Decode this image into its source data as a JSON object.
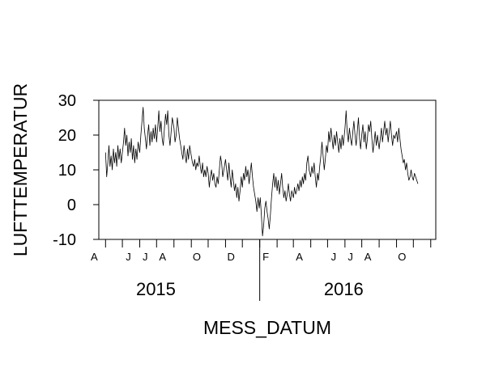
{
  "chart_data": {
    "type": "line",
    "xlabel": "MESS_DATUM",
    "ylabel": "LUFTTEMPERATUR",
    "ylim": [
      -10,
      30
    ],
    "yticks": [
      -10,
      0,
      10,
      20,
      30
    ],
    "xlim": [
      "2015-03-20",
      "2016-11-10"
    ],
    "month_ticks": [
      {
        "date": "2015-04-01",
        "label": "A"
      },
      {
        "date": "2015-05-01",
        "label": ""
      },
      {
        "date": "2015-06-01",
        "label": "J"
      },
      {
        "date": "2015-07-01",
        "label": "J"
      },
      {
        "date": "2015-08-01",
        "label": "A"
      },
      {
        "date": "2015-09-01",
        "label": ""
      },
      {
        "date": "2015-10-01",
        "label": "O"
      },
      {
        "date": "2015-11-01",
        "label": ""
      },
      {
        "date": "2015-12-01",
        "label": "D"
      },
      {
        "date": "2016-01-01",
        "label": ""
      },
      {
        "date": "2016-02-01",
        "label": "F"
      },
      {
        "date": "2016-03-01",
        "label": ""
      },
      {
        "date": "2016-04-01",
        "label": "A"
      },
      {
        "date": "2016-05-01",
        "label": ""
      },
      {
        "date": "2016-06-01",
        "label": "J"
      },
      {
        "date": "2016-07-01",
        "label": "J"
      },
      {
        "date": "2016-08-01",
        "label": "A"
      },
      {
        "date": "2016-09-01",
        "label": ""
      },
      {
        "date": "2016-10-01",
        "label": "O"
      },
      {
        "date": "2016-11-01",
        "label": ""
      }
    ],
    "year_labels": [
      {
        "label": "2015",
        "date": "2015-08-15"
      },
      {
        "label": "2016",
        "date": "2016-07-15"
      }
    ],
    "year_divider": "2016-01-01",
    "series": [
      {
        "points": [
          [
            "2015-04-01",
            15
          ],
          [
            "2015-04-03",
            8
          ],
          [
            "2015-04-05",
            12
          ],
          [
            "2015-04-07",
            17
          ],
          [
            "2015-04-09",
            11
          ],
          [
            "2015-04-11",
            14
          ],
          [
            "2015-04-13",
            10
          ],
          [
            "2015-04-15",
            16
          ],
          [
            "2015-04-17",
            12
          ],
          [
            "2015-04-19",
            15
          ],
          [
            "2015-04-21",
            11
          ],
          [
            "2015-04-23",
            17
          ],
          [
            "2015-04-25",
            13
          ],
          [
            "2015-04-27",
            16
          ],
          [
            "2015-04-29",
            12
          ],
          [
            "2015-05-01",
            15
          ],
          [
            "2015-05-03",
            18
          ],
          [
            "2015-05-05",
            22
          ],
          [
            "2015-05-07",
            17
          ],
          [
            "2015-05-09",
            20
          ],
          [
            "2015-05-11",
            14
          ],
          [
            "2015-05-13",
            18
          ],
          [
            "2015-05-15",
            15
          ],
          [
            "2015-05-17",
            19
          ],
          [
            "2015-05-19",
            13
          ],
          [
            "2015-05-21",
            17
          ],
          [
            "2015-05-23",
            12
          ],
          [
            "2015-05-25",
            16
          ],
          [
            "2015-05-27",
            13
          ],
          [
            "2015-05-29",
            18
          ],
          [
            "2015-06-01",
            15
          ],
          [
            "2015-06-03",
            20
          ],
          [
            "2015-06-05",
            24
          ],
          [
            "2015-06-07",
            28
          ],
          [
            "2015-06-09",
            22
          ],
          [
            "2015-06-11",
            19
          ],
          [
            "2015-06-13",
            16
          ],
          [
            "2015-06-15",
            20
          ],
          [
            "2015-06-17",
            23
          ],
          [
            "2015-06-19",
            17
          ],
          [
            "2015-06-21",
            21
          ],
          [
            "2015-06-23",
            18
          ],
          [
            "2015-06-25",
            22
          ],
          [
            "2015-06-27",
            19
          ],
          [
            "2015-06-29",
            23
          ],
          [
            "2015-07-01",
            18
          ],
          [
            "2015-07-03",
            22
          ],
          [
            "2015-07-05",
            27
          ],
          [
            "2015-07-07",
            21
          ],
          [
            "2015-07-09",
            24
          ],
          [
            "2015-07-11",
            19
          ],
          [
            "2015-07-13",
            17
          ],
          [
            "2015-07-15",
            22
          ],
          [
            "2015-07-17",
            26
          ],
          [
            "2015-07-19",
            23
          ],
          [
            "2015-07-21",
            27
          ],
          [
            "2015-07-23",
            20
          ],
          [
            "2015-07-25",
            17
          ],
          [
            "2015-07-27",
            21
          ],
          [
            "2015-07-29",
            25
          ],
          [
            "2015-08-01",
            22
          ],
          [
            "2015-08-03",
            18
          ],
          [
            "2015-08-05",
            20
          ],
          [
            "2015-08-07",
            25
          ],
          [
            "2015-08-09",
            22
          ],
          [
            "2015-08-11",
            19
          ],
          [
            "2015-08-13",
            17
          ],
          [
            "2015-08-15",
            15
          ],
          [
            "2015-08-17",
            13
          ],
          [
            "2015-08-19",
            17
          ],
          [
            "2015-08-21",
            14
          ],
          [
            "2015-08-23",
            12
          ],
          [
            "2015-08-25",
            16
          ],
          [
            "2015-08-27",
            13
          ],
          [
            "2015-08-29",
            17
          ],
          [
            "2015-09-01",
            14
          ],
          [
            "2015-09-03",
            12
          ],
          [
            "2015-09-05",
            11
          ],
          [
            "2015-09-07",
            13
          ],
          [
            "2015-09-09",
            10
          ],
          [
            "2015-09-11",
            12
          ],
          [
            "2015-09-13",
            11
          ],
          [
            "2015-09-15",
            14
          ],
          [
            "2015-09-17",
            11
          ],
          [
            "2015-09-19",
            9
          ],
          [
            "2015-09-21",
            12
          ],
          [
            "2015-09-23",
            8
          ],
          [
            "2015-09-25",
            10
          ],
          [
            "2015-09-27",
            8
          ],
          [
            "2015-09-29",
            11
          ],
          [
            "2015-10-01",
            9
          ],
          [
            "2015-10-03",
            5
          ],
          [
            "2015-10-05",
            8
          ],
          [
            "2015-10-07",
            10
          ],
          [
            "2015-10-09",
            7
          ],
          [
            "2015-10-11",
            9
          ],
          [
            "2015-10-13",
            6
          ],
          [
            "2015-10-15",
            5
          ],
          [
            "2015-10-17",
            8
          ],
          [
            "2015-10-19",
            6
          ],
          [
            "2015-10-21",
            10
          ],
          [
            "2015-10-23",
            14
          ],
          [
            "2015-10-25",
            12
          ],
          [
            "2015-10-27",
            8
          ],
          [
            "2015-10-29",
            10
          ],
          [
            "2015-11-01",
            13
          ],
          [
            "2015-11-03",
            10
          ],
          [
            "2015-11-05",
            7
          ],
          [
            "2015-11-07",
            12
          ],
          [
            "2015-11-09",
            8
          ],
          [
            "2015-11-11",
            5
          ],
          [
            "2015-11-13",
            10
          ],
          [
            "2015-11-15",
            7
          ],
          [
            "2015-11-17",
            4
          ],
          [
            "2015-11-19",
            6
          ],
          [
            "2015-11-21",
            2
          ],
          [
            "2015-11-23",
            5
          ],
          [
            "2015-11-25",
            1
          ],
          [
            "2015-11-27",
            4
          ],
          [
            "2015-11-29",
            8
          ],
          [
            "2015-12-01",
            5
          ],
          [
            "2015-12-03",
            9
          ],
          [
            "2015-12-05",
            7
          ],
          [
            "2015-12-07",
            11
          ],
          [
            "2015-12-09",
            8
          ],
          [
            "2015-12-11",
            10
          ],
          [
            "2015-12-13",
            6
          ],
          [
            "2015-12-15",
            9
          ],
          [
            "2015-12-17",
            12
          ],
          [
            "2015-12-19",
            8
          ],
          [
            "2015-12-21",
            5
          ],
          [
            "2015-12-23",
            3
          ],
          [
            "2015-12-25",
            1
          ],
          [
            "2015-12-27",
            -2
          ],
          [
            "2015-12-29",
            2
          ],
          [
            "2015-12-31",
            -1
          ],
          [
            "2016-01-02",
            2
          ],
          [
            "2016-01-04",
            -3
          ],
          [
            "2016-01-06",
            -9
          ],
          [
            "2016-01-08",
            -6
          ],
          [
            "2016-01-10",
            -1
          ],
          [
            "2016-01-12",
            1
          ],
          [
            "2016-01-14",
            -2
          ],
          [
            "2016-01-16",
            -4
          ],
          [
            "2016-01-18",
            -7
          ],
          [
            "2016-01-20",
            -3
          ],
          [
            "2016-01-22",
            2
          ],
          [
            "2016-01-24",
            6
          ],
          [
            "2016-01-26",
            9
          ],
          [
            "2016-01-28",
            5
          ],
          [
            "2016-01-30",
            8
          ],
          [
            "2016-02-01",
            4
          ],
          [
            "2016-02-03",
            7
          ],
          [
            "2016-02-05",
            3
          ],
          [
            "2016-02-07",
            6
          ],
          [
            "2016-02-09",
            9
          ],
          [
            "2016-02-11",
            5
          ],
          [
            "2016-02-13",
            2
          ],
          [
            "2016-02-15",
            4
          ],
          [
            "2016-02-17",
            1
          ],
          [
            "2016-02-19",
            3
          ],
          [
            "2016-02-21",
            6
          ],
          [
            "2016-02-23",
            3
          ],
          [
            "2016-02-25",
            1
          ],
          [
            "2016-02-27",
            4
          ],
          [
            "2016-03-01",
            2
          ],
          [
            "2016-03-03",
            5
          ],
          [
            "2016-03-05",
            3
          ],
          [
            "2016-03-07",
            4
          ],
          [
            "2016-03-09",
            6
          ],
          [
            "2016-03-11",
            4
          ],
          [
            "2016-03-13",
            7
          ],
          [
            "2016-03-15",
            5
          ],
          [
            "2016-03-17",
            8
          ],
          [
            "2016-03-19",
            6
          ],
          [
            "2016-03-21",
            9
          ],
          [
            "2016-03-23",
            7
          ],
          [
            "2016-03-25",
            12
          ],
          [
            "2016-03-27",
            14
          ],
          [
            "2016-03-29",
            10
          ],
          [
            "2016-04-01",
            8
          ],
          [
            "2016-04-03",
            11
          ],
          [
            "2016-04-05",
            9
          ],
          [
            "2016-04-07",
            12
          ],
          [
            "2016-04-09",
            8
          ],
          [
            "2016-04-11",
            5
          ],
          [
            "2016-04-13",
            9
          ],
          [
            "2016-04-15",
            7
          ],
          [
            "2016-04-17",
            11
          ],
          [
            "2016-04-19",
            14
          ],
          [
            "2016-04-21",
            18
          ],
          [
            "2016-04-23",
            14
          ],
          [
            "2016-04-25",
            10
          ],
          [
            "2016-04-27",
            13
          ],
          [
            "2016-04-29",
            17
          ],
          [
            "2016-05-01",
            15
          ],
          [
            "2016-05-03",
            21
          ],
          [
            "2016-05-05",
            18
          ],
          [
            "2016-05-07",
            22
          ],
          [
            "2016-05-09",
            19
          ],
          [
            "2016-05-11",
            16
          ],
          [
            "2016-05-13",
            20
          ],
          [
            "2016-05-15",
            17
          ],
          [
            "2016-05-17",
            21
          ],
          [
            "2016-05-19",
            18
          ],
          [
            "2016-05-21",
            15
          ],
          [
            "2016-05-23",
            19
          ],
          [
            "2016-05-25",
            16
          ],
          [
            "2016-05-27",
            20
          ],
          [
            "2016-05-29",
            17
          ],
          [
            "2016-06-01",
            22
          ],
          [
            "2016-06-03",
            27
          ],
          [
            "2016-06-05",
            21
          ],
          [
            "2016-06-07",
            18
          ],
          [
            "2016-06-09",
            22
          ],
          [
            "2016-06-11",
            19
          ],
          [
            "2016-06-13",
            17
          ],
          [
            "2016-06-15",
            21
          ],
          [
            "2016-06-17",
            24
          ],
          [
            "2016-06-19",
            20
          ],
          [
            "2016-06-21",
            17
          ],
          [
            "2016-06-23",
            21
          ],
          [
            "2016-06-25",
            25
          ],
          [
            "2016-06-27",
            19
          ],
          [
            "2016-06-29",
            16
          ],
          [
            "2016-07-01",
            20
          ],
          [
            "2016-07-03",
            23
          ],
          [
            "2016-07-05",
            18
          ],
          [
            "2016-07-07",
            21
          ],
          [
            "2016-07-09",
            16
          ],
          [
            "2016-07-11",
            19
          ],
          [
            "2016-07-13",
            23
          ],
          [
            "2016-07-15",
            21
          ],
          [
            "2016-07-17",
            24
          ],
          [
            "2016-07-19",
            19
          ],
          [
            "2016-07-21",
            15
          ],
          [
            "2016-07-23",
            18
          ],
          [
            "2016-07-25",
            21
          ],
          [
            "2016-07-27",
            17
          ],
          [
            "2016-07-29",
            20
          ],
          [
            "2016-08-01",
            16
          ],
          [
            "2016-08-03",
            19
          ],
          [
            "2016-08-05",
            22
          ],
          [
            "2016-08-07",
            18
          ],
          [
            "2016-08-09",
            21
          ],
          [
            "2016-08-11",
            24
          ],
          [
            "2016-08-13",
            20
          ],
          [
            "2016-08-15",
            22
          ],
          [
            "2016-08-17",
            18
          ],
          [
            "2016-08-19",
            21
          ],
          [
            "2016-08-21",
            24
          ],
          [
            "2016-08-23",
            20
          ],
          [
            "2016-08-25",
            17
          ],
          [
            "2016-08-27",
            20
          ],
          [
            "2016-08-29",
            19
          ],
          [
            "2016-09-01",
            21
          ],
          [
            "2016-09-03",
            18
          ],
          [
            "2016-09-05",
            22
          ],
          [
            "2016-09-07",
            19
          ],
          [
            "2016-09-09",
            16
          ],
          [
            "2016-09-11",
            14
          ],
          [
            "2016-09-13",
            12
          ],
          [
            "2016-09-15",
            13
          ],
          [
            "2016-09-17",
            10
          ],
          [
            "2016-09-19",
            12
          ],
          [
            "2016-09-21",
            9
          ],
          [
            "2016-09-23",
            7
          ],
          [
            "2016-09-25",
            8
          ],
          [
            "2016-09-27",
            10
          ],
          [
            "2016-09-29",
            8
          ],
          [
            "2016-10-01",
            7
          ],
          [
            "2016-10-03",
            9
          ],
          [
            "2016-10-05",
            8
          ],
          [
            "2016-10-07",
            7
          ],
          [
            "2016-10-09",
            6
          ]
        ]
      }
    ]
  }
}
